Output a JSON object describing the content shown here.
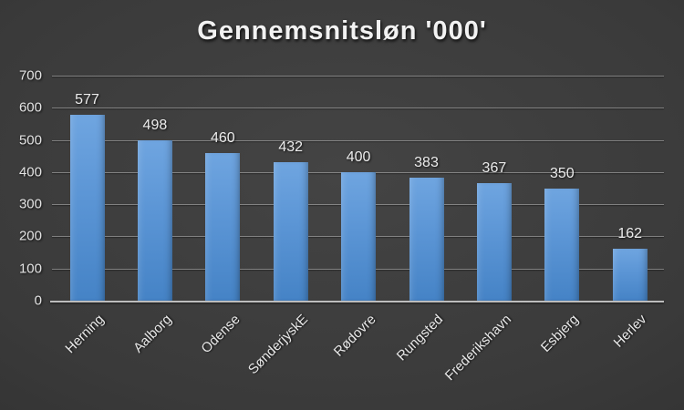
{
  "chart_data": {
    "type": "bar",
    "title": "Gennemsnitsløn '000'",
    "categories": [
      "Herning",
      "Aalborg",
      "Odense",
      "SønderjyskE",
      "Rødovre",
      "Rungsted",
      "Frederikshavn",
      "Esbjerg",
      "Herlev"
    ],
    "values": [
      577,
      498,
      460,
      432,
      400,
      383,
      367,
      350,
      162
    ],
    "value_labels": [
      "577",
      "498",
      "460",
      "432",
      "400",
      "383",
      "367",
      "350",
      "162"
    ],
    "xlabel": "",
    "ylabel": "",
    "ylim": [
      0,
      700
    ],
    "ytick_step": 100,
    "ytick_labels": [
      "0",
      "100",
      "200",
      "300",
      "400",
      "500",
      "600",
      "700"
    ],
    "grid": true,
    "legend_position": "none",
    "colors": {
      "bar_top": "#6FA5E0",
      "bar_bottom": "#4583C6",
      "background_center": "#444444",
      "background_edge": "#262626",
      "text": "#e8e8e8",
      "gridline": "rgba(230,230,230,0.40)",
      "axis_line": "#bdbdbd"
    }
  }
}
